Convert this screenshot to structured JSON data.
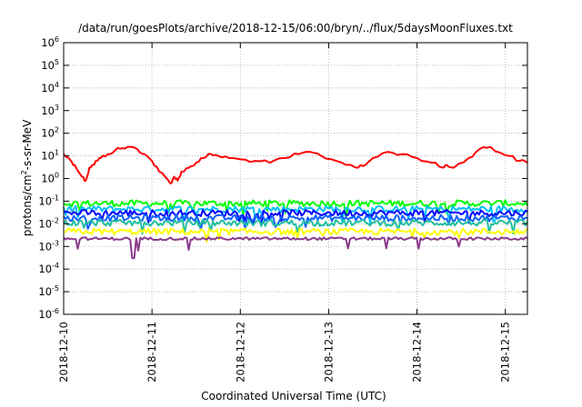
{
  "chart_data": {
    "type": "line",
    "title": "/data/run/goesPlots/archive/2018-12-15/06:00/bryn/../flux/5daysMoonFluxes.txt",
    "xlabel": "Coordinated Universal Time (UTC)",
    "ylabel": {
      "prefix": "protons/cm",
      "sup": "2",
      "suffix": "-s-sr-MeV"
    },
    "y_scale": "log",
    "ylim": [
      1e-06,
      1000000.0
    ],
    "y_ticks": [
      {
        "value": 1e-06,
        "base": "10",
        "exp": "-6"
      },
      {
        "value": 1e-05,
        "base": "10",
        "exp": "-5"
      },
      {
        "value": 0.0001,
        "base": "10",
        "exp": "-4"
      },
      {
        "value": 0.001,
        "base": "10",
        "exp": "-3"
      },
      {
        "value": 0.01,
        "base": "10",
        "exp": "-2"
      },
      {
        "value": 0.1,
        "base": "10",
        "exp": "-1"
      },
      {
        "value": 1,
        "base": "10",
        "exp": "0"
      },
      {
        "value": 10,
        "base": "10",
        "exp": "1"
      },
      {
        "value": 100,
        "base": "10",
        "exp": "2"
      },
      {
        "value": 1000,
        "base": "10",
        "exp": "3"
      },
      {
        "value": 10000,
        "base": "10",
        "exp": "4"
      },
      {
        "value": 100000,
        "base": "10",
        "exp": "5"
      },
      {
        "value": 1000000,
        "base": "10",
        "exp": "6"
      }
    ],
    "xlim": [
      "2018-12-10T00:00",
      "2018-12-15T06:00"
    ],
    "x_ticks": [
      "2018-12-10",
      "2018-12-11",
      "2018-12-12",
      "2018-12-13",
      "2018-12-14",
      "2018-12-15"
    ],
    "grid": true,
    "legend": "none",
    "series": [
      {
        "color": "#ff0000",
        "x": [
          "2018-12-10T00:00",
          "2018-12-10T02:00",
          "2018-12-10T03:00",
          "2018-12-10T05:00",
          "2018-12-10T06:00",
          "2018-12-10T07:00",
          "2018-12-10T08:00",
          "2018-12-10T09:00",
          "2018-12-10T10:00",
          "2018-12-10T12:00",
          "2018-12-10T14:00",
          "2018-12-10T16:00",
          "2018-12-10T18:00",
          "2018-12-10T20:00",
          "2018-12-10T22:00",
          "2018-12-11T00:00",
          "2018-12-11T02:00",
          "2018-12-11T04:00",
          "2018-12-11T05:00",
          "2018-12-11T06:00",
          "2018-12-11T07:00",
          "2018-12-11T08:00",
          "2018-12-11T10:00",
          "2018-12-11T12:00",
          "2018-12-11T14:00",
          "2018-12-11T16:00",
          "2018-12-11T18:00",
          "2018-12-11T21:00",
          "2018-12-12T00:00",
          "2018-12-12T04:00",
          "2018-12-12T08:00",
          "2018-12-12T12:00",
          "2018-12-12T16:00",
          "2018-12-12T19:00",
          "2018-12-12T22:00",
          "2018-12-13T02:00",
          "2018-12-13T06:00",
          "2018-12-13T08:00",
          "2018-12-13T10:00",
          "2018-12-13T12:00",
          "2018-12-13T16:00",
          "2018-12-13T20:00",
          "2018-12-14T00:00",
          "2018-12-14T04:00",
          "2018-12-14T07:00",
          "2018-12-14T08:00",
          "2018-12-14T10:00",
          "2018-12-14T14:00",
          "2018-12-14T17:00",
          "2018-12-14T20:00",
          "2018-12-14T22:00",
          "2018-12-15T01:00",
          "2018-12-15T04:00",
          "2018-12-15T06:00"
        ],
        "values": [
          12,
          6,
          4,
          1.2,
          0.8,
          3,
          4,
          6,
          8,
          12,
          18,
          22,
          25,
          20,
          12,
          6,
          2,
          1,
          0.6,
          1.2,
          0.8,
          2,
          3,
          5,
          8,
          12,
          10,
          8,
          7,
          6,
          5,
          8,
          12,
          15,
          10,
          6,
          4,
          3,
          4,
          8,
          15,
          12,
          8,
          5,
          3,
          4,
          3,
          8,
          20,
          25,
          15,
          10,
          6,
          5
        ]
      },
      {
        "color": "#00ff00",
        "base": 0.08,
        "x": [
          "2018-12-10T00:00",
          "2018-12-15T06:00"
        ],
        "values": [
          0.08,
          0.08
        ]
      },
      {
        "color": "#00bfff",
        "base": 0.045,
        "x": [
          "2018-12-10T00:00",
          "2018-12-15T06:00"
        ],
        "values": [
          0.045,
          0.045
        ]
      },
      {
        "color": "#0000ff",
        "base": 0.03,
        "x": [
          "2018-12-10T00:00",
          "2018-12-15T06:00"
        ],
        "values": [
          0.03,
          0.03
        ]
      },
      {
        "color": "#1060ff",
        "base": 0.018,
        "x": [
          "2018-12-10T00:00",
          "2018-12-15T06:00"
        ],
        "values": [
          0.018,
          0.018
        ]
      },
      {
        "color": "#20c0a0",
        "base": 0.011,
        "x": [
          "2018-12-10T00:00",
          "2018-12-15T06:00"
        ],
        "values": [
          0.011,
          0.011
        ]
      },
      {
        "color": "#ffff00",
        "base": 0.0045,
        "x": [
          "2018-12-10T00:00",
          "2018-12-15T06:00"
        ],
        "values": [
          0.0045,
          0.0045
        ]
      },
      {
        "color": "#8b3a8b",
        "base": 0.0022,
        "x": [
          "2018-12-10T00:00",
          "2018-12-15T06:00"
        ],
        "values": [
          0.0022,
          0.0022
        ]
      }
    ]
  }
}
